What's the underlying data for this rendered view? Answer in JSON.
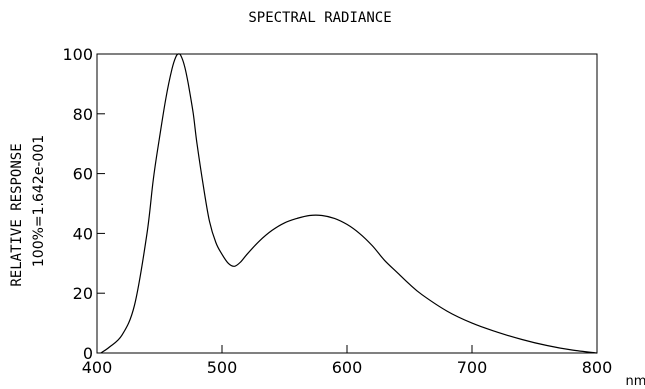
{
  "chart_data": {
    "type": "line",
    "title": "SPECTRAL RADIANCE",
    "xlabel": "nm",
    "ylabel_line1": "RELATIVE RESPONSE",
    "ylabel_line2": "100%=1.642e-001",
    "xlim": [
      400,
      800
    ],
    "ylim": [
      0,
      100
    ],
    "x_ticks": [
      400,
      500,
      600,
      700,
      800
    ],
    "y_ticks": [
      0,
      20,
      40,
      60,
      80,
      100
    ],
    "x_tick_labels": [
      "400",
      "500",
      "600",
      "700",
      "800"
    ],
    "y_tick_labels": [
      "0",
      "20",
      "40",
      "60",
      "80",
      "100"
    ],
    "grid": false,
    "series": [
      {
        "x": [
          403,
          410,
          420,
          430,
          440,
          445,
          450,
          455,
          460,
          463,
          465,
          467,
          470,
          473,
          477,
          480,
          485,
          490,
          495,
          500,
          505,
          510,
          515,
          520,
          530,
          540,
          550,
          560,
          570,
          580,
          590,
          600,
          610,
          620,
          630,
          640,
          650,
          660,
          680,
          700,
          720,
          740,
          760,
          780,
          800
        ],
        "y": [
          0,
          2,
          6,
          16,
          40,
          58,
          72,
          85,
          95,
          99,
          100,
          99.5,
          96,
          90,
          80,
          70,
          56,
          44,
          37,
          33,
          30,
          29,
          30.5,
          33,
          37.5,
          41,
          43.5,
          45,
          46,
          46,
          45,
          43,
          40,
          36,
          31,
          27,
          23,
          19.5,
          14,
          10,
          7,
          4.5,
          2.5,
          1,
          0
        ]
      }
    ]
  }
}
